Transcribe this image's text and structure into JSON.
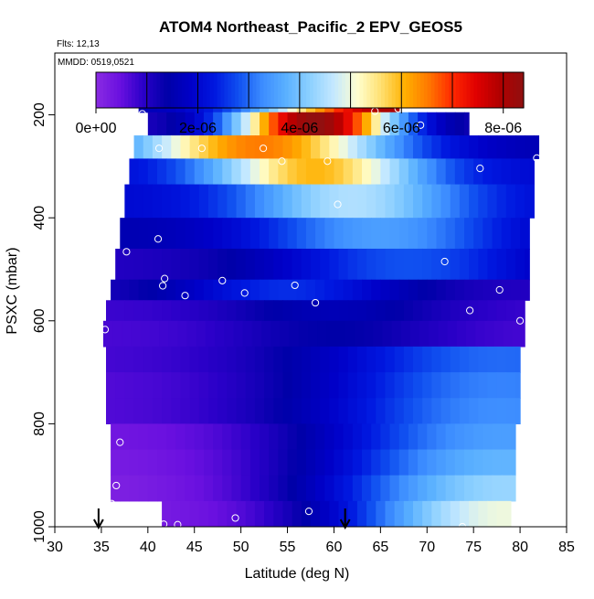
{
  "chart_data": {
    "type": "heatmap",
    "title": "ATOM4 Northeast_Pacific_2 EPV_GEOS5",
    "subtitle_flights": "Flts: 12,13",
    "subtitle_dates": "MMDD: 0519,0521",
    "xlabel": "Latitude (deg N)",
    "ylabel": "PSXC (mbar)",
    "xlim": [
      30,
      85
    ],
    "ylim": [
      1000,
      80
    ],
    "y_reversed": true,
    "x_ticks": [
      30,
      35,
      40,
      45,
      50,
      55,
      60,
      65,
      70,
      75,
      80,
      85
    ],
    "x_tick_labels": [
      "30",
      "35",
      "40",
      "45",
      "50",
      "55",
      "60",
      "65",
      "70",
      "75",
      "80",
      "85"
    ],
    "y_ticks": [
      200,
      400,
      600,
      800,
      1000
    ],
    "y_tick_labels": [
      "200",
      "400",
      "600",
      "800",
      "1000"
    ],
    "colorbar": {
      "range": [
        0,
        8.4e-06
      ],
      "ticks": [
        0,
        2e-06,
        4e-06,
        6e-06,
        8e-06
      ],
      "tick_labels": [
        "0e+00",
        "2e-06",
        "4e-06",
        "6e-06",
        "8e-06"
      ],
      "colors": [
        "#8a2be2",
        "#6a10e0",
        "#2a00c8",
        "#0000a8",
        "#0000c8",
        "#0018e0",
        "#1050f0",
        "#3c8cff",
        "#5ab0ff",
        "#8cd0ff",
        "#c4e8ff",
        "#ffffd0",
        "#ffe070",
        "#ffb000",
        "#ff7800",
        "#ff2800",
        "#e00000",
        "#b00000",
        "#901010"
      ]
    },
    "grid": false,
    "rows": [
      {
        "p": [
          165,
          195
        ],
        "x0": 39,
        "x1": 67,
        "vmin": 1.5e-06,
        "vmax": 8e-06,
        "peak": 66
      },
      {
        "p": [
          195,
          240
        ],
        "x0": 40,
        "x1": 74.5,
        "vmin": 1e-06,
        "vmax": 8.4e-06,
        "peak": 58
      },
      {
        "p": [
          240,
          285
        ],
        "x0": 38.5,
        "x1": 82,
        "vmin": 1.5e-06,
        "vmax": 6.5e-06,
        "peak": 52
      },
      {
        "p": [
          285,
          335
        ],
        "x0": 38,
        "x1": 81.5,
        "vmin": 2e-06,
        "vmax": 6e-06,
        "peak": 58
      },
      {
        "p": [
          335,
          400
        ],
        "x0": 37.5,
        "x1": 81.5,
        "vmin": 2e-06,
        "vmax": 4.5e-06,
        "peak": 62
      },
      {
        "p": [
          400,
          460
        ],
        "x0": 37,
        "x1": 81,
        "vmin": 1.5e-06,
        "vmax": 3.5e-06,
        "peak": 65
      },
      {
        "p": [
          460,
          520
        ],
        "x0": 36.5,
        "x1": 81,
        "vmin": 1e-06,
        "vmax": 2.8e-06,
        "peak": 68
      },
      {
        "p": [
          520,
          560
        ],
        "x0": 36,
        "x1": 81,
        "vmin": 1e-06,
        "vmax": 2.5e-06,
        "peak": 55
      },
      {
        "p": [
          560,
          600
        ],
        "x0": 35.5,
        "x1": 80.5,
        "vmin": 8e-07,
        "vmax": 1.6e-06,
        "peak": 60
      },
      {
        "p": [
          600,
          650
        ],
        "x0": 35.2,
        "x1": 80.5,
        "vmin": 7e-07,
        "vmax": 1.4e-06,
        "peak": 60
      },
      {
        "p": [
          650,
          700
        ],
        "x0": 35.5,
        "x1": 80,
        "vmin": 7e-07,
        "vmax": 3e-06,
        "peak": 78
      },
      {
        "p": [
          700,
          750
        ],
        "x0": 35.5,
        "x1": 80,
        "vmin": 6e-07,
        "vmax": 3.2e-06,
        "peak": 78
      },
      {
        "p": [
          750,
          800
        ],
        "x0": 35.5,
        "x1": 80,
        "vmin": 6e-07,
        "vmax": 3.3e-06,
        "peak": 78
      },
      {
        "p": [
          800,
          850
        ],
        "x0": 36,
        "x1": 79.5,
        "vmin": 3e-07,
        "vmax": 3.5e-06,
        "peak": 78
      },
      {
        "p": [
          850,
          900
        ],
        "x0": 36,
        "x1": 79.5,
        "vmin": 2e-07,
        "vmax": 3.8e-06,
        "peak": 78
      },
      {
        "p": [
          900,
          950
        ],
        "x0": 36,
        "x1": 79.5,
        "vmin": 1e-07,
        "vmax": 4.3e-06,
        "peak": 78.5
      },
      {
        "p": [
          950,
          1000
        ],
        "x0": 41.5,
        "x1": 79,
        "vmin": 2e-07,
        "vmax": 5e-06,
        "peak": 78.5
      }
    ],
    "observations": [
      {
        "lat": 39.4,
        "p": 198
      },
      {
        "lat": 64.4,
        "p": 193
      },
      {
        "lat": 66.9,
        "p": 188
      },
      {
        "lat": 69.3,
        "p": 220
      },
      {
        "lat": 41.2,
        "p": 265
      },
      {
        "lat": 45.8,
        "p": 265
      },
      {
        "lat": 52.4,
        "p": 265
      },
      {
        "lat": 54.4,
        "p": 290
      },
      {
        "lat": 59.3,
        "p": 290
      },
      {
        "lat": 75.7,
        "p": 304
      },
      {
        "lat": 81.8,
        "p": 284
      },
      {
        "lat": 60.4,
        "p": 374
      },
      {
        "lat": 41.1,
        "p": 441
      },
      {
        "lat": 37.7,
        "p": 466
      },
      {
        "lat": 71.9,
        "p": 485
      },
      {
        "lat": 41.8,
        "p": 518
      },
      {
        "lat": 41.6,
        "p": 532
      },
      {
        "lat": 48.0,
        "p": 522
      },
      {
        "lat": 44.0,
        "p": 551
      },
      {
        "lat": 50.4,
        "p": 546
      },
      {
        "lat": 55.8,
        "p": 531
      },
      {
        "lat": 58.0,
        "p": 565
      },
      {
        "lat": 77.8,
        "p": 540
      },
      {
        "lat": 74.6,
        "p": 580
      },
      {
        "lat": 80.0,
        "p": 600
      },
      {
        "lat": 35.4,
        "p": 617
      },
      {
        "lat": 37.0,
        "p": 836
      },
      {
        "lat": 36.6,
        "p": 920
      },
      {
        "lat": 36.1,
        "p": 955
      },
      {
        "lat": 41.7,
        "p": 995
      },
      {
        "lat": 43.2,
        "p": 996
      },
      {
        "lat": 49.4,
        "p": 983
      },
      {
        "lat": 57.3,
        "p": 970
      },
      {
        "lat": 73.8,
        "p": 1000
      }
    ],
    "arrows_lat": [
      34.7,
      61.2
    ]
  }
}
